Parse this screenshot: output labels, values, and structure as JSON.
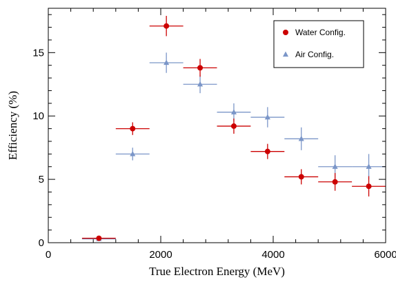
{
  "chart_data": {
    "type": "scatter",
    "xlabel": "True Electron Energy (MeV)",
    "ylabel": "Efficiency (%)",
    "xlim": [
      0,
      6000
    ],
    "ylim": [
      0,
      18.5
    ],
    "x_ticks": [
      "0",
      "2000",
      "4000",
      "6000"
    ],
    "y_ticks": [
      "0",
      "5",
      "10",
      "15"
    ],
    "grid": false,
    "legend_position": "top-right",
    "series": [
      {
        "name": "Water Config.",
        "marker": "circle",
        "color": "#cc0000",
        "points": [
          {
            "x": 900,
            "y": 0.35,
            "xerr": 300,
            "yerr": 0.15
          },
          {
            "x": 1500,
            "y": 9.0,
            "xerr": 300,
            "yerr": 0.5
          },
          {
            "x": 2100,
            "y": 17.1,
            "xerr": 300,
            "yerr": 0.8
          },
          {
            "x": 2700,
            "y": 13.8,
            "xerr": 300,
            "yerr": 0.7
          },
          {
            "x": 3300,
            "y": 9.2,
            "xerr": 300,
            "yerr": 0.6
          },
          {
            "x": 3900,
            "y": 7.2,
            "xerr": 300,
            "yerr": 0.6
          },
          {
            "x": 4500,
            "y": 5.2,
            "xerr": 300,
            "yerr": 0.6
          },
          {
            "x": 5100,
            "y": 4.8,
            "xerr": 300,
            "yerr": 0.7
          },
          {
            "x": 5700,
            "y": 4.45,
            "xerr": 300,
            "yerr": 0.8
          }
        ]
      },
      {
        "name": "Air Config.",
        "marker": "triangle",
        "color": "#7b96c8",
        "points": [
          {
            "x": 900,
            "y": 0.3,
            "xerr": 300,
            "yerr": 0.15
          },
          {
            "x": 1500,
            "y": 7.0,
            "xerr": 300,
            "yerr": 0.5
          },
          {
            "x": 2100,
            "y": 14.2,
            "xerr": 300,
            "yerr": 0.8
          },
          {
            "x": 2700,
            "y": 12.5,
            "xerr": 300,
            "yerr": 0.7
          },
          {
            "x": 3300,
            "y": 10.3,
            "xerr": 300,
            "yerr": 0.7
          },
          {
            "x": 3900,
            "y": 9.9,
            "xerr": 300,
            "yerr": 0.8
          },
          {
            "x": 4500,
            "y": 8.2,
            "xerr": 300,
            "yerr": 0.9
          },
          {
            "x": 5100,
            "y": 6.0,
            "xerr": 300,
            "yerr": 0.9
          },
          {
            "x": 5700,
            "y": 6.0,
            "xerr": 300,
            "yerr": 1.0
          }
        ]
      }
    ]
  }
}
